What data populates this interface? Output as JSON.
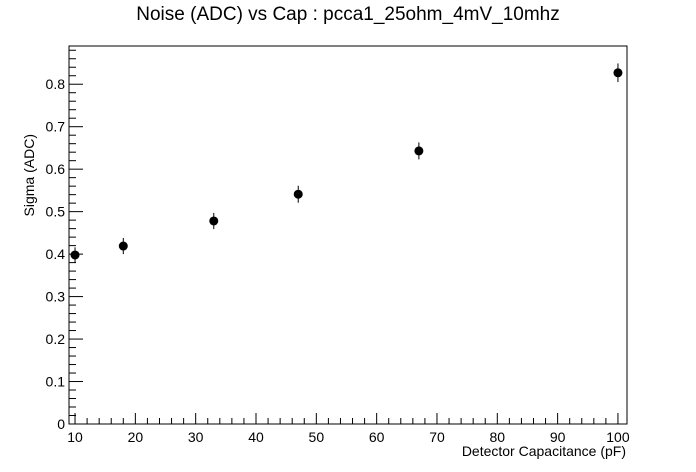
{
  "chart_data": {
    "type": "scatter",
    "title": "Noise (ADC) vs Cap : pcca1_25ohm_4mV_10mhz",
    "xlabel": "Detector Capacitance (pF)",
    "ylabel": "Sigma (ADC)",
    "xlim": [
      9,
      101.5
    ],
    "ylim": [
      0,
      0.89
    ],
    "grid": false,
    "x_ticks": [
      10,
      20,
      30,
      40,
      50,
      60,
      70,
      80,
      90,
      100
    ],
    "y_ticks": [
      0,
      0.1,
      0.2,
      0.3,
      0.4,
      0.5,
      0.6,
      0.7,
      0.8
    ],
    "series": [
      {
        "color": "#000000",
        "marker": "circle",
        "points": [
          {
            "x": 10,
            "y": 0.398,
            "err": 0.018
          },
          {
            "x": 18,
            "y": 0.419,
            "err": 0.019
          },
          {
            "x": 33,
            "y": 0.478,
            "err": 0.019
          },
          {
            "x": 47,
            "y": 0.541,
            "err": 0.02
          },
          {
            "x": 67,
            "y": 0.643,
            "err": 0.02
          },
          {
            "x": 100,
            "y": 0.827,
            "err": 0.022
          }
        ]
      }
    ]
  }
}
